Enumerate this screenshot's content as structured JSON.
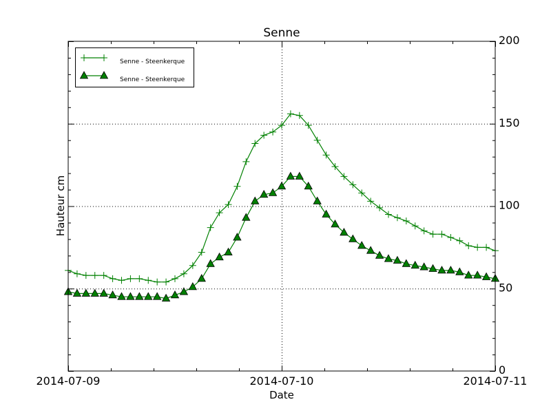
{
  "chart_data": {
    "type": "line",
    "title": "Senne",
    "xlabel": "Date",
    "ylabel": "Hauteur cm",
    "ylim": [
      0,
      200
    ],
    "yticks": [
      0,
      50,
      100,
      150,
      200
    ],
    "ytick_side": "right",
    "xlim": [
      "2014-07-09 00:00",
      "2014-07-11 00:00"
    ],
    "xticks": [
      "2014-07-09",
      "2014-07-10",
      "2014-07-11"
    ],
    "x_interval": "hourly",
    "grid": true,
    "legend_position": "top-left",
    "series": [
      {
        "name": "Senne - Steenkerque",
        "marker": "plus",
        "color": "#008000",
        "values": [
          61,
          59,
          58,
          58,
          58,
          56,
          55,
          56,
          56,
          55,
          54,
          54,
          56,
          59,
          64,
          72,
          87,
          96,
          101,
          112,
          127,
          138,
          143,
          145,
          149,
          156,
          155,
          149,
          140,
          131,
          124,
          118,
          113,
          108,
          103,
          99,
          95,
          93,
          91,
          88,
          85,
          83,
          83,
          81,
          79,
          76,
          75,
          75,
          73
        ]
      },
      {
        "name": "Senne - Steenkerque",
        "marker": "triangle",
        "color": "#008000",
        "values": [
          48,
          47,
          47,
          47,
          47,
          46,
          45,
          45,
          45,
          45,
          45,
          44,
          46,
          48,
          51,
          56,
          65,
          69,
          72,
          81,
          93,
          103,
          107,
          108,
          112,
          118,
          118,
          112,
          103,
          95,
          89,
          84,
          80,
          76,
          73,
          70,
          68,
          67,
          65,
          64,
          63,
          62,
          61,
          61,
          60,
          58,
          58,
          57,
          56
        ]
      }
    ]
  }
}
